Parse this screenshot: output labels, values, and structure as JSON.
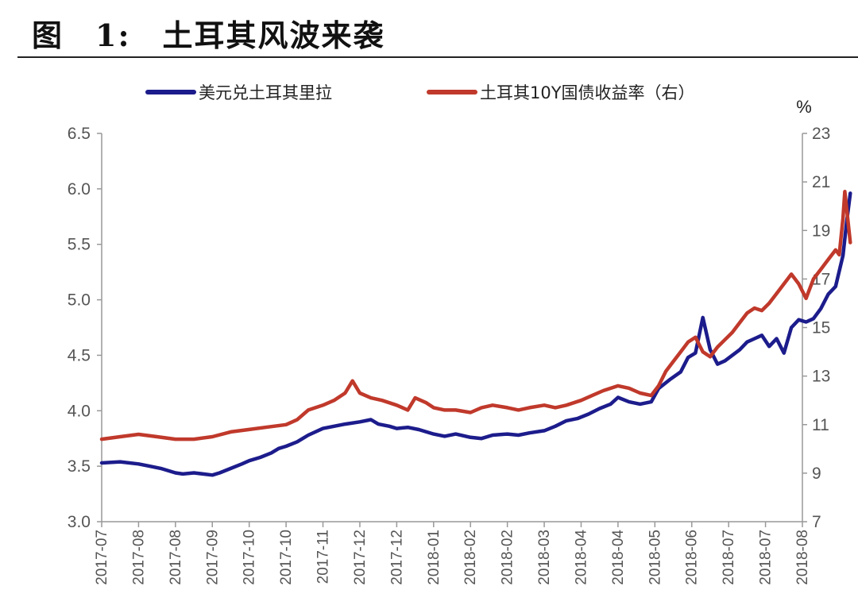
{
  "figure": {
    "title": "图　1:　土耳其风波来袭"
  },
  "chart_data": {
    "type": "line",
    "title": "",
    "x_ticks": [
      "2017-07",
      "2017-08",
      "2017-08",
      "2017-09",
      "2017-10",
      "2017-10",
      "2017-11",
      "2017-12",
      "2017-12",
      "2018-01",
      "2018-02",
      "2018-02",
      "2018-03",
      "2018-04",
      "2018-04",
      "2018-05",
      "2018-06",
      "2018-07",
      "2018-07",
      "2018-08"
    ],
    "y_left": {
      "range": [
        3.0,
        6.5
      ],
      "ticks": [
        "3.0",
        "3.5",
        "4.0",
        "4.5",
        "5.0",
        "5.5",
        "6.0",
        "6.5"
      ]
    },
    "y_right": {
      "range": [
        7,
        23
      ],
      "ticks": [
        "7",
        "9",
        "11",
        "13",
        "15",
        "17",
        "19",
        "21",
        "23"
      ],
      "unit": "%"
    },
    "legend_position": "top",
    "grid": false,
    "series": [
      {
        "name": "美元兑土耳其里拉",
        "axis": "left",
        "color": "#1c1c8c",
        "points": [
          [
            0,
            3.53
          ],
          [
            0.5,
            3.54
          ],
          [
            1,
            3.52
          ],
          [
            1.3,
            3.5
          ],
          [
            1.6,
            3.48
          ],
          [
            2,
            3.44
          ],
          [
            2.2,
            3.43
          ],
          [
            2.5,
            3.44
          ],
          [
            3,
            3.42
          ],
          [
            3.2,
            3.44
          ],
          [
            3.5,
            3.48
          ],
          [
            3.8,
            3.52
          ],
          [
            4,
            3.55
          ],
          [
            4.3,
            3.58
          ],
          [
            4.6,
            3.62
          ],
          [
            4.8,
            3.66
          ],
          [
            5,
            3.68
          ],
          [
            5.3,
            3.72
          ],
          [
            5.6,
            3.78
          ],
          [
            6,
            3.84
          ],
          [
            6.3,
            3.86
          ],
          [
            6.6,
            3.88
          ],
          [
            7,
            3.9
          ],
          [
            7.3,
            3.92
          ],
          [
            7.5,
            3.88
          ],
          [
            7.8,
            3.86
          ],
          [
            8,
            3.84
          ],
          [
            8.3,
            3.85
          ],
          [
            8.6,
            3.83
          ],
          [
            9,
            3.79
          ],
          [
            9.3,
            3.77
          ],
          [
            9.6,
            3.79
          ],
          [
            10,
            3.76
          ],
          [
            10.3,
            3.75
          ],
          [
            10.6,
            3.78
          ],
          [
            11,
            3.79
          ],
          [
            11.3,
            3.78
          ],
          [
            11.6,
            3.8
          ],
          [
            12,
            3.82
          ],
          [
            12.3,
            3.86
          ],
          [
            12.6,
            3.91
          ],
          [
            12.9,
            3.93
          ],
          [
            13.2,
            3.97
          ],
          [
            13.5,
            4.02
          ],
          [
            13.8,
            4.06
          ],
          [
            14,
            4.12
          ],
          [
            14.3,
            4.08
          ],
          [
            14.6,
            4.06
          ],
          [
            14.9,
            4.08
          ],
          [
            15.1,
            4.2
          ],
          [
            15.4,
            4.28
          ],
          [
            15.7,
            4.35
          ],
          [
            15.9,
            4.48
          ],
          [
            16.1,
            4.52
          ],
          [
            16.3,
            4.84
          ],
          [
            16.5,
            4.55
          ],
          [
            16.7,
            4.42
          ],
          [
            16.9,
            4.45
          ],
          [
            17.1,
            4.5
          ],
          [
            17.3,
            4.55
          ],
          [
            17.5,
            4.62
          ],
          [
            17.7,
            4.65
          ],
          [
            17.9,
            4.68
          ],
          [
            18.1,
            4.58
          ],
          [
            18.3,
            4.65
          ],
          [
            18.5,
            4.52
          ],
          [
            18.7,
            4.75
          ],
          [
            18.9,
            4.82
          ],
          [
            19.1,
            4.8
          ],
          [
            19.3,
            4.83
          ],
          [
            19.5,
            4.92
          ],
          [
            19.7,
            5.05
          ],
          [
            19.9,
            5.12
          ],
          [
            20.1,
            5.4
          ],
          [
            20.2,
            5.7
          ],
          [
            20.3,
            5.96
          ]
        ]
      },
      {
        "name": "土耳其10Y国债收益率（右）",
        "axis": "right",
        "color": "#c0392b",
        "points": [
          [
            0,
            10.4
          ],
          [
            0.5,
            10.5
          ],
          [
            1,
            10.6
          ],
          [
            1.5,
            10.5
          ],
          [
            2,
            10.4
          ],
          [
            2.5,
            10.4
          ],
          [
            3,
            10.5
          ],
          [
            3.5,
            10.7
          ],
          [
            4,
            10.8
          ],
          [
            4.5,
            10.9
          ],
          [
            5,
            11.0
          ],
          [
            5.3,
            11.2
          ],
          [
            5.6,
            11.6
          ],
          [
            6,
            11.8
          ],
          [
            6.3,
            12.0
          ],
          [
            6.6,
            12.3
          ],
          [
            6.8,
            12.8
          ],
          [
            7,
            12.3
          ],
          [
            7.3,
            12.1
          ],
          [
            7.6,
            12.0
          ],
          [
            8,
            11.8
          ],
          [
            8.3,
            11.6
          ],
          [
            8.5,
            12.1
          ],
          [
            8.8,
            11.9
          ],
          [
            9,
            11.7
          ],
          [
            9.3,
            11.6
          ],
          [
            9.6,
            11.6
          ],
          [
            10,
            11.5
          ],
          [
            10.3,
            11.7
          ],
          [
            10.6,
            11.8
          ],
          [
            11,
            11.7
          ],
          [
            11.3,
            11.6
          ],
          [
            11.6,
            11.7
          ],
          [
            12,
            11.8
          ],
          [
            12.3,
            11.7
          ],
          [
            12.6,
            11.8
          ],
          [
            13,
            12.0
          ],
          [
            13.3,
            12.2
          ],
          [
            13.6,
            12.4
          ],
          [
            14,
            12.6
          ],
          [
            14.3,
            12.5
          ],
          [
            14.6,
            12.3
          ],
          [
            14.9,
            12.2
          ],
          [
            15.1,
            12.6
          ],
          [
            15.3,
            13.2
          ],
          [
            15.5,
            13.6
          ],
          [
            15.7,
            14.0
          ],
          [
            15.9,
            14.4
          ],
          [
            16.1,
            14.6
          ],
          [
            16.3,
            14.0
          ],
          [
            16.5,
            13.8
          ],
          [
            16.7,
            14.2
          ],
          [
            16.9,
            14.5
          ],
          [
            17.1,
            14.8
          ],
          [
            17.3,
            15.2
          ],
          [
            17.5,
            15.6
          ],
          [
            17.7,
            15.8
          ],
          [
            17.9,
            15.7
          ],
          [
            18.1,
            16.0
          ],
          [
            18.3,
            16.4
          ],
          [
            18.5,
            16.8
          ],
          [
            18.7,
            17.2
          ],
          [
            18.9,
            16.8
          ],
          [
            19.1,
            16.2
          ],
          [
            19.3,
            17.0
          ],
          [
            19.5,
            17.4
          ],
          [
            19.7,
            17.8
          ],
          [
            19.9,
            18.2
          ],
          [
            20.0,
            18.0
          ],
          [
            20.1,
            19.5
          ],
          [
            20.15,
            20.6
          ],
          [
            20.25,
            19.2
          ],
          [
            20.3,
            18.5
          ]
        ]
      }
    ]
  }
}
